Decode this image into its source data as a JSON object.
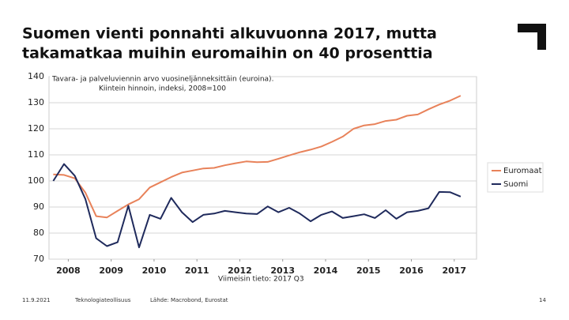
{
  "chart_data": {
    "type": "line",
    "title": "Suomen vienti ponnahti alkuvuonna 2017, mutta",
    "subtitle": "takamatkaa muihin euromaihin on 40 prosenttia",
    "annotations": [
      "Tavara- ja palveluviennin arvo vuosineljänneksittäin (euroina).",
      "Kiintein hinnoin, indeksi, 2008=100"
    ],
    "note": "Viimeisin tieto: 2017 Q3",
    "footer": [
      "11.9.2021",
      "Teknologiateollisuus",
      "Lähde: Macrobond, Eurostat",
      "14"
    ],
    "x": [
      2008,
      2008.25,
      2008.5,
      2008.75,
      2009,
      2009.25,
      2009.5,
      2009.75,
      2010,
      2010.25,
      2010.5,
      2010.75,
      2011,
      2011.25,
      2011.5,
      2011.75,
      2012,
      2012.25,
      2012.5,
      2012.75,
      2013,
      2013.25,
      2013.5,
      2013.75,
      2014,
      2014.25,
      2014.5,
      2014.75,
      2015,
      2015.25,
      2015.5,
      2015.75,
      2016,
      2016.25,
      2016.5,
      2016.75,
      2017,
      2017.25,
      2017.5
    ],
    "series": [
      {
        "name": "Euromaat",
        "color": "#e8825a",
        "values": [
          102.5,
          102.3,
          101,
          95.5,
          86.5,
          86,
          88.5,
          91,
          93,
          97.5,
          99.5,
          101.5,
          103.2,
          104,
          104.8,
          105,
          106,
          106.8,
          107.5,
          107.2,
          107.3,
          108.5,
          109.8,
          111,
          112,
          113.2,
          115,
          117,
          120,
          121.3,
          121.8,
          123,
          123.5,
          125,
          125.5,
          127.5,
          129.3,
          130.8,
          132.7
        ]
      },
      {
        "name": "Suomi",
        "color": "#1f2a5c",
        "values": [
          100,
          106.5,
          102,
          93,
          78,
          75,
          76.5,
          90.5,
          74.5,
          87,
          85.5,
          93.5,
          88,
          84.2,
          87,
          87.5,
          88.5,
          88,
          87.5,
          87.3,
          90.2,
          88,
          89.7,
          87.5,
          84.5,
          87,
          88.3,
          85.8,
          86.5,
          87.2,
          85.8,
          88.8,
          85.5,
          88,
          88.5,
          89.5,
          95.8,
          95.7,
          94
        ]
      }
    ],
    "xlim": [
      2007.9,
      2017.87
    ],
    "xticks": [
      {
        "value": 2008.35,
        "label": "2008"
      },
      {
        "value": 2009.35,
        "label": "2009"
      },
      {
        "value": 2010.35,
        "label": "2010"
      },
      {
        "value": 2011.35,
        "label": "2011"
      },
      {
        "value": 2012.35,
        "label": "2012"
      },
      {
        "value": 2013.35,
        "label": "2013"
      },
      {
        "value": 2014.35,
        "label": "2014"
      },
      {
        "value": 2015.35,
        "label": "2015"
      },
      {
        "value": 2016.35,
        "label": "2016"
      },
      {
        "value": 2017.35,
        "label": "2017"
      }
    ],
    "ylim": [
      70,
      140
    ],
    "yticks": [
      70,
      80,
      90,
      100,
      110,
      120,
      130,
      140
    ],
    "grid": true,
    "legend": "right"
  }
}
